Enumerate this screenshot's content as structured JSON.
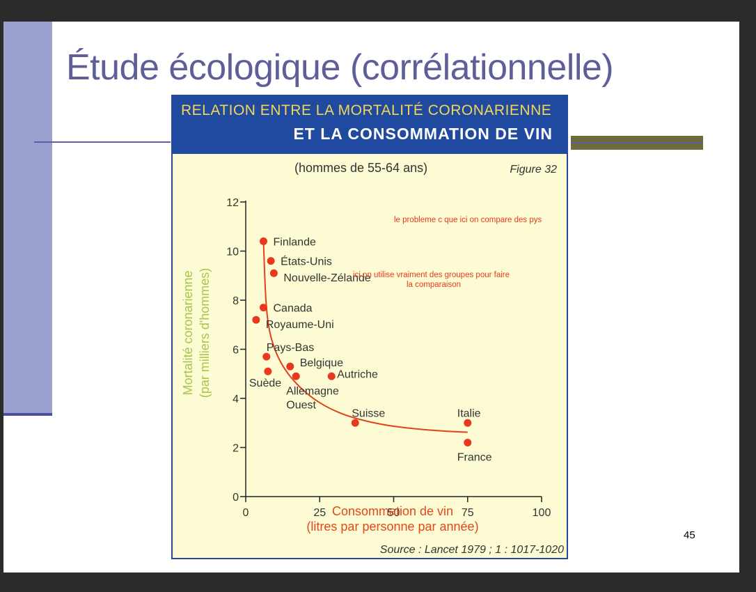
{
  "slide": {
    "title": "Étude écologique (corrélationnelle)",
    "page_number": "45"
  },
  "figure": {
    "header_line1": "RELATION ENTRE LA MORTALITÉ CORONARIENNE",
    "header_line2": "ET LA CONSOMMATION DE VIN",
    "subtitle": "(hommes de 55-64 ans)",
    "figure_label": "Figure 32",
    "source": "Source : Lancet 1979 ; 1 : 1017-1020",
    "notes": [
      "le probleme c que ici on compare des pys",
      "ici on utilise vraiment des groupes pour faire",
      "la comparaison"
    ]
  },
  "colors": {
    "point": "#e8391e",
    "curve": "#e2401e",
    "axis_title": "#e0481e",
    "y_title": "#a8c44a",
    "note": "#e8391e",
    "header_bg": "#1f4aa0",
    "figure_bg": "#fdfbd3"
  },
  "chart_data": {
    "type": "scatter",
    "title": "",
    "xlabel": "Consommation de vin",
    "xlabel_line2": "(litres par personne par année)",
    "ylabel": "Mortalité coronarienne",
    "ylabel_line2": "(par milliers d'hommes)",
    "xlim": [
      0,
      100
    ],
    "ylim": [
      0,
      12
    ],
    "xticks": [
      0,
      25,
      50,
      75,
      100
    ],
    "yticks": [
      0,
      2,
      4,
      6,
      8,
      10,
      12
    ],
    "grid": false,
    "points": [
      {
        "label": "Finlande",
        "x": 6,
        "y": 10.4
      },
      {
        "label": "États-Unis",
        "x": 8.5,
        "y": 9.6
      },
      {
        "label": "Nouvelle-Zélande",
        "x": 9.5,
        "y": 9.1
      },
      {
        "label": "Canada",
        "x": 6,
        "y": 7.7
      },
      {
        "label": "Royaume-Uni",
        "x": 3.5,
        "y": 7.2
      },
      {
        "label": "Pays-Bas",
        "x": 7,
        "y": 5.7
      },
      {
        "label": "Suède",
        "x": 7.5,
        "y": 5.1
      },
      {
        "label": "Belgique",
        "x": 15,
        "y": 5.3
      },
      {
        "label": "Allemagne Ouest",
        "x": 17,
        "y": 4.9
      },
      {
        "label": "Autriche",
        "x": 29,
        "y": 4.9
      },
      {
        "label": "Suisse",
        "x": 37,
        "y": 3.0
      },
      {
        "label": "Italie",
        "x": 75,
        "y": 3.0
      },
      {
        "label": "France",
        "x": 75,
        "y": 2.2
      }
    ],
    "trend_curve": [
      [
        6,
        10.4
      ],
      [
        6.5,
        8.7
      ],
      [
        7,
        7.6
      ],
      [
        8,
        6.7
      ],
      [
        10,
        5.9
      ],
      [
        13,
        5.2
      ],
      [
        17,
        4.6
      ],
      [
        22,
        4.05
      ],
      [
        28,
        3.6
      ],
      [
        35,
        3.25
      ],
      [
        45,
        2.95
      ],
      [
        55,
        2.78
      ],
      [
        65,
        2.68
      ],
      [
        75,
        2.62
      ]
    ]
  }
}
